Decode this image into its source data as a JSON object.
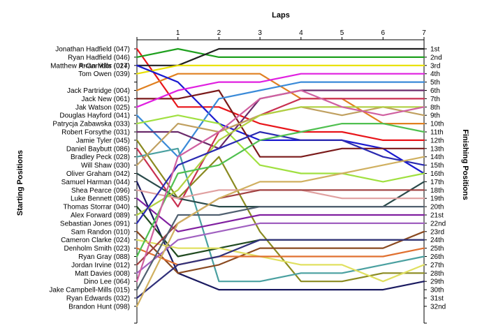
{
  "chart_data": {
    "type": "line",
    "title": "",
    "xlabel": "Laps",
    "ylabel_left": "Starting Positions",
    "ylabel_right": "Finishing Positions",
    "laps": [
      "1",
      "2",
      "3",
      "4",
      "5",
      "6",
      "7"
    ],
    "finishing_positions": [
      "1st",
      "2nd",
      "3rd",
      "4th",
      "5th",
      "6th",
      "7th",
      "8th",
      "9th",
      "10th",
      "11th",
      "12th",
      "13th",
      "14th",
      "15th",
      "16th",
      "17th",
      "18th",
      "19th",
      "20th",
      "21st",
      "22nd",
      "23rd",
      "24th",
      "25th",
      "26th",
      "27th",
      "28th",
      "29th",
      "30th",
      "31st",
      "32nd"
    ],
    "grid": false,
    "series": [
      {
        "name": "Jonathan Hadfield (047)",
        "color": "#e8151a",
        "positions": [
          1,
          8,
          8,
          10,
          11,
          11,
          12,
          12
        ]
      },
      {
        "name": "Ryan Hadfield (046)",
        "color": "#1ea01e",
        "positions": [
          2,
          1,
          2,
          2,
          2,
          2,
          2,
          2
        ]
      },
      {
        "name": "Arran Mills (014)",
        "color": "#202020",
        "positions": [
          3,
          3,
          1,
          1,
          1,
          1,
          1,
          1
        ]
      },
      {
        "name": "Tom Owen (039)",
        "color": "#e8e000",
        "positions": [
          4,
          3,
          3,
          3,
          3,
          3,
          3,
          3
        ]
      },
      {
        "name": "Jack Partridge (004)",
        "color": "#e08020",
        "positions": [
          6,
          4,
          4,
          4,
          7,
          7,
          10,
          10
        ]
      },
      {
        "name": "Matthew R-Garridor (027)",
        "color": "#1a1ad0",
        "positions": [
          3,
          5,
          10,
          12,
          12,
          12,
          13,
          16
        ]
      },
      {
        "name": "Jack New (061)",
        "color": "#7a1a1a",
        "positions": [
          7,
          7,
          6,
          14,
          14,
          13,
          13,
          13
        ]
      },
      {
        "name": "Jak Watson (025)",
        "color": "#e020e0",
        "positions": [
          8,
          6,
          5,
          5,
          4,
          4,
          4,
          4
        ]
      },
      {
        "name": "Douglas Hayford (041)",
        "color": "#3a8ad8",
        "positions": [
          9,
          14,
          7,
          6,
          5,
          5,
          5,
          5
        ]
      },
      {
        "name": "Patrycja Zabawska (033)",
        "color": "#a0e040",
        "positions": [
          10,
          9,
          10,
          15,
          16,
          16,
          17,
          16
        ]
      },
      {
        "name": "Robert Forsythe (031)",
        "color": "#6a2a6a",
        "positions": [
          11,
          11,
          13,
          7,
          6,
          6,
          6,
          6
        ]
      },
      {
        "name": "Jamie Tyler (045)",
        "color": "#8a8a20",
        "positions": [
          12,
          19,
          14,
          23,
          29,
          29,
          28,
          28
        ]
      },
      {
        "name": "Daniel Baybutt (086)",
        "color": "#c83050",
        "positions": [
          13,
          20,
          11,
          9,
          7,
          7,
          7,
          7
        ]
      },
      {
        "name": "Bradley Peck (028)",
        "color": "#4aa0a0",
        "positions": [
          14,
          13,
          29,
          29,
          28,
          28,
          27,
          26
        ]
      },
      {
        "name": "Will Shaw (030)",
        "color": "#c0a060",
        "positions": [
          15,
          10,
          11,
          9,
          8,
          9,
          8,
          9
        ]
      },
      {
        "name": "Oliver Graham (042)",
        "color": "#2a4a4a",
        "positions": [
          16,
          19,
          20,
          20,
          20,
          20,
          20,
          17
        ]
      },
      {
        "name": "Samuel Harman (044)",
        "color": "#1a1a60",
        "positions": [
          17,
          28,
          30,
          30,
          30,
          30,
          30,
          29
        ]
      },
      {
        "name": "Shea Pearce (096)",
        "color": "#e0a0a0",
        "positions": [
          18,
          19,
          18,
          18,
          18,
          19,
          19,
          19
        ]
      },
      {
        "name": "Luke Bennett (085)",
        "color": "#8020a0",
        "positions": [
          19,
          23,
          22,
          21,
          21,
          21,
          21,
          21
        ]
      },
      {
        "name": "Thomas Storrar (040)",
        "color": "#204a20",
        "positions": [
          20,
          26,
          25,
          24,
          24,
          24,
          24,
          24
        ]
      },
      {
        "name": "Alex Forward (089)",
        "color": "#b0d040",
        "positions": [
          21,
          18,
          12,
          9,
          8,
          8,
          8,
          8
        ]
      },
      {
        "name": "Sebastian Jones (091)",
        "color": "#2a2ab0",
        "positions": [
          22,
          15,
          13,
          11,
          12,
          12,
          14,
          15
        ]
      },
      {
        "name": "Sam Randon (010)",
        "color": "#8a4a20",
        "positions": [
          23,
          28,
          27,
          25,
          25,
          25,
          25,
          23
        ]
      },
      {
        "name": "Cameron Clarke (024)",
        "color": "#e0e060",
        "positions": [
          24,
          25,
          25,
          26,
          27,
          27,
          29,
          27
        ]
      },
      {
        "name": "Denholm Smith (023)",
        "color": "#e07030",
        "positions": [
          25,
          27,
          26,
          26,
          26,
          26,
          26,
          25
        ]
      },
      {
        "name": "Ryan Gray (088)",
        "color": "#50c050",
        "positions": [
          26,
          16,
          15,
          12,
          11,
          10,
          10,
          11
        ]
      },
      {
        "name": "Jordan Irvine (012)",
        "color": "#a04040",
        "positions": [
          27,
          22,
          19,
          18,
          18,
          18,
          18,
          18
        ]
      },
      {
        "name": "Matt Davies (008)",
        "color": "#a060c0",
        "positions": [
          28,
          24,
          23,
          22,
          22,
          22,
          22,
          22
        ]
      },
      {
        "name": "Dino Lee (064)",
        "color": "#d060a0",
        "positions": [
          29,
          14,
          11,
          7,
          6,
          8,
          9,
          8
        ]
      },
      {
        "name": "Jake Campbell-Mills (015)",
        "color": "#506070",
        "positions": [
          30,
          21,
          21,
          20,
          20,
          20,
          20,
          20
        ]
      },
      {
        "name": "Ryan Edwards (032)",
        "color": "#30307a",
        "positions": [
          31,
          27,
          26,
          24,
          24,
          24,
          24,
          24
        ]
      },
      {
        "name": "Brandon Hunt (098)",
        "color": "#d0b060",
        "positions": [
          32,
          22,
          19,
          17,
          17,
          16,
          15,
          14
        ]
      }
    ]
  }
}
